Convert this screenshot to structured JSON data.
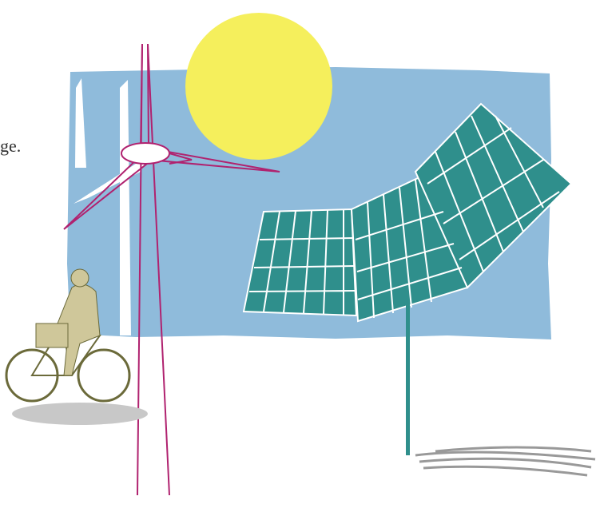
{
  "text": {
    "fragment": "ge."
  }
}
